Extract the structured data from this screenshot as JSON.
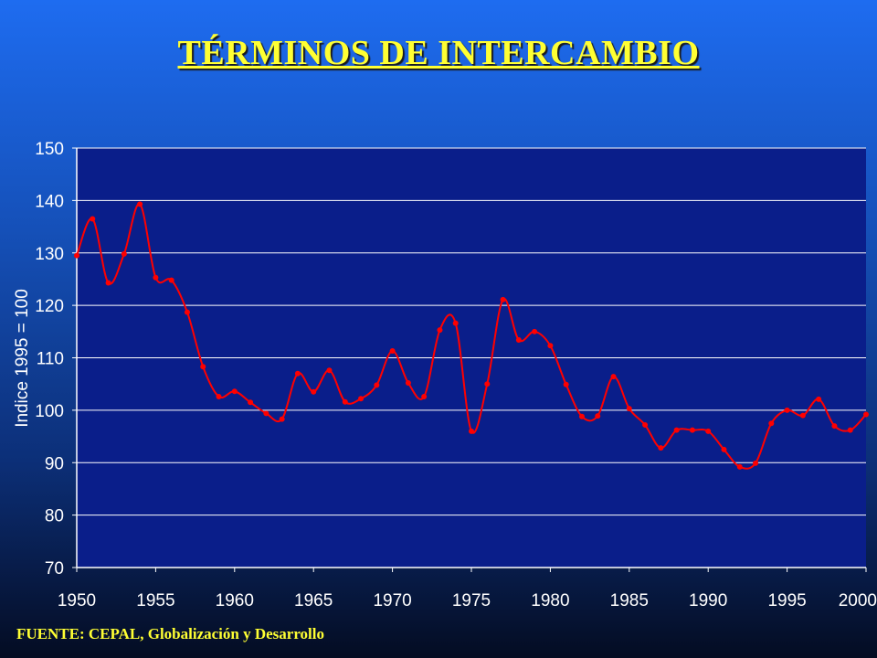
{
  "title": "TÉRMINOS DE INTERCAMBIO",
  "source": "FUENTE: CEPAL, Globalización y Desarrollo",
  "chart_data": {
    "type": "line",
    "title": "TÉRMINOS DE INTERCAMBIO",
    "xlabel": "",
    "ylabel": "Indice 1995 = 100",
    "xlim": [
      1950,
      2000
    ],
    "ylim": [
      70,
      150
    ],
    "x_ticks": [
      1950,
      1955,
      1960,
      1965,
      1970,
      1975,
      1980,
      1985,
      1990,
      1995,
      2000
    ],
    "y_ticks": [
      70,
      80,
      90,
      100,
      110,
      120,
      130,
      140,
      150
    ],
    "grid": "horizontal",
    "legend": "none",
    "colors": {
      "line": "#ff0000",
      "plot_background": "#0a1e8a",
      "grid": "#ffffff",
      "text": "#ffffff"
    },
    "series": [
      {
        "x": [
          1950,
          1951,
          1952,
          1953,
          1954,
          1955,
          1956,
          1957,
          1958,
          1959,
          1960,
          1961,
          1962,
          1963,
          1964,
          1965,
          1966,
          1967,
          1968,
          1969,
          1970,
          1971,
          1972,
          1973,
          1974,
          1975,
          1976,
          1977,
          1978,
          1979,
          1980,
          1981,
          1982,
          1983,
          1984,
          1985,
          1986,
          1987,
          1988,
          1989,
          1990,
          1991,
          1992,
          1993,
          1994,
          1995,
          1996,
          1997,
          1998,
          1999,
          2000
        ],
        "values": [
          129.5,
          136.5,
          124.3,
          129.8,
          139.3,
          125.3,
          124.8,
          118.7,
          108.3,
          102.6,
          103.6,
          101.5,
          99.4,
          98.3,
          107.0,
          103.5,
          107.6,
          101.6,
          102.2,
          104.8,
          111.3,
          105.2,
          102.6,
          115.3,
          116.6,
          96.0,
          105.0,
          121.1,
          113.4,
          115.0,
          112.3,
          104.9,
          98.8,
          98.9,
          106.4,
          100.3,
          97.2,
          92.8,
          96.2,
          96.2,
          96.0,
          92.5,
          89.2,
          89.9,
          97.5,
          100.0,
          99.0,
          102.1,
          97.0,
          96.2,
          99.2
        ]
      }
    ]
  }
}
